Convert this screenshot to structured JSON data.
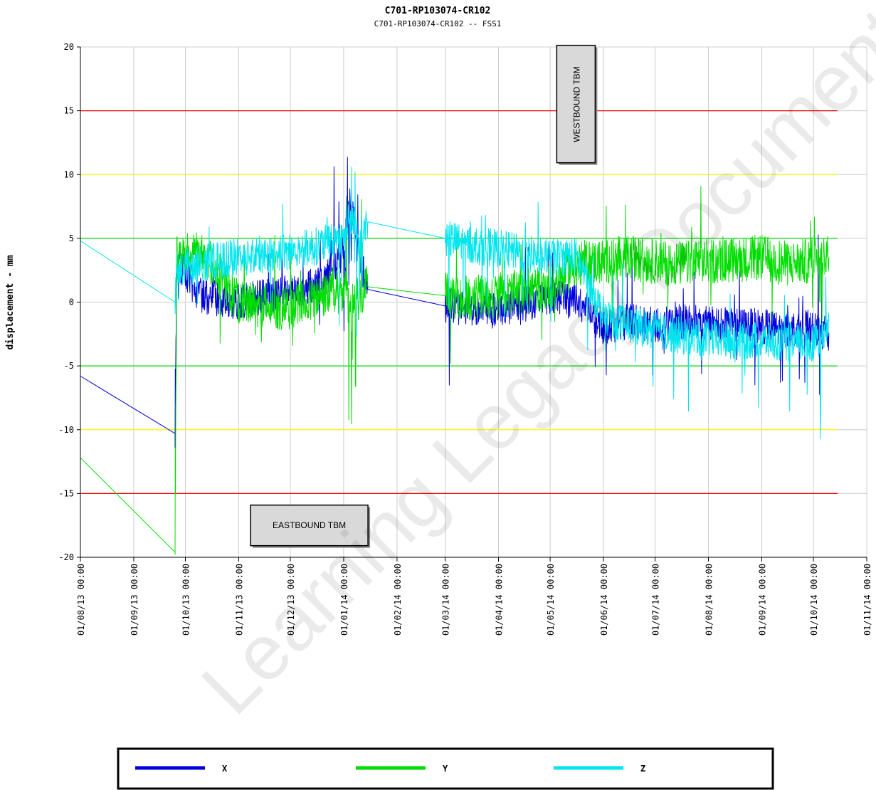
{
  "chart_data": {
    "type": "line",
    "title": "C701-RP103074-CR102",
    "subtitle": "C701-RP103074-CR102 -- FSS1",
    "ylabel": "displacement - mm",
    "xlabel": "",
    "ylim": [
      -20,
      20
    ],
    "yticks": [
      20,
      15,
      10,
      5,
      0,
      -5,
      -10,
      -15,
      -20
    ],
    "xlim": [
      "2013-08-01",
      "2014-11-01"
    ],
    "xticks": [
      {
        "date": "2013-08-01",
        "label": "01/08/13 00:00"
      },
      {
        "date": "2013-09-01",
        "label": "01/09/13 00:00"
      },
      {
        "date": "2013-10-01",
        "label": "01/10/13 00:00"
      },
      {
        "date": "2013-11-01",
        "label": "01/11/13 00:00"
      },
      {
        "date": "2013-12-01",
        "label": "01/12/13 00:00"
      },
      {
        "date": "2014-01-01",
        "label": "01/01/14 00:00"
      },
      {
        "date": "2014-02-01",
        "label": "01/02/14 00:00"
      },
      {
        "date": "2014-03-01",
        "label": "01/03/14 00:00"
      },
      {
        "date": "2014-04-01",
        "label": "01/04/14 00:00"
      },
      {
        "date": "2014-05-01",
        "label": "01/05/14 00:00"
      },
      {
        "date": "2014-06-01",
        "label": "01/06/14 00:00"
      },
      {
        "date": "2014-07-01",
        "label": "01/07/14 00:00"
      },
      {
        "date": "2014-08-01",
        "label": "01/08/14 00:00"
      },
      {
        "date": "2014-09-01",
        "label": "01/09/14 00:00"
      },
      {
        "date": "2014-10-01",
        "label": "01/10/14 00:00"
      },
      {
        "date": "2014-11-01",
        "label": "01/11/14 00:00"
      }
    ],
    "grid": true,
    "thresholds": [
      {
        "y": 15,
        "color": "#ff0000"
      },
      {
        "y": -15,
        "color": "#ff0000"
      },
      {
        "y": 10,
        "color": "#ffff00"
      },
      {
        "y": -10,
        "color": "#ffff00"
      },
      {
        "y": 5,
        "color": "#00dd00"
      },
      {
        "y": -5,
        "color": "#00dd00"
      }
    ],
    "annotations": [
      {
        "text": "WESTBOUND TBM",
        "date": "2014-05-16",
        "y": 15.5,
        "orientation": "vertical"
      },
      {
        "text": "EASTBOUND TBM",
        "date": "2013-12-12",
        "y": -17.5,
        "orientation": "horizontal"
      }
    ],
    "legend_position": "bottom",
    "series": [
      {
        "name": "X",
        "color": "#0000dd",
        "x": [
          "2013-08-01",
          "2013-09-25",
          "2013-09-26",
          "2013-10-10",
          "2013-11-01",
          "2013-12-01",
          "2013-12-20",
          "2014-01-01",
          "2014-01-05",
          "2014-01-10",
          "2014-01-15",
          "2014-03-01",
          "2014-03-15",
          "2014-04-01",
          "2014-04-15",
          "2014-05-01",
          "2014-05-16",
          "2014-06-01",
          "2014-06-15",
          "2014-07-01",
          "2014-07-15",
          "2014-08-01",
          "2014-08-15",
          "2014-09-01",
          "2014-09-15",
          "2014-09-28",
          "2014-10-05",
          "2014-10-10"
        ],
        "y": [
          -5.8,
          -10.3,
          3.0,
          0.5,
          0.0,
          0.8,
          1.5,
          4.0,
          8.0,
          3.5,
          1.0,
          -0.3,
          -0.5,
          -0.7,
          -0.2,
          0.5,
          0.2,
          -2.0,
          -1.5,
          -1.8,
          -1.5,
          -1.6,
          -1.8,
          -1.9,
          -2.2,
          -2.0,
          -2.5,
          -2.4
        ]
      },
      {
        "name": "Y",
        "color": "#00dd00",
        "x": [
          "2013-08-01",
          "2013-09-25",
          "2013-09-26",
          "2013-10-10",
          "2013-11-01",
          "2013-12-01",
          "2013-12-20",
          "2014-01-01",
          "2014-01-05",
          "2014-01-10",
          "2014-01-15",
          "2014-03-01",
          "2014-03-15",
          "2014-04-01",
          "2014-04-15",
          "2014-05-01",
          "2014-05-16",
          "2014-06-01",
          "2014-06-15",
          "2014-07-01",
          "2014-07-15",
          "2014-08-01",
          "2014-08-15",
          "2014-09-01",
          "2014-09-15",
          "2014-09-28",
          "2014-10-05",
          "2014-10-10"
        ],
        "y": [
          -12.2,
          -19.6,
          3.5,
          4.0,
          0.0,
          -0.5,
          0.5,
          1.0,
          -0.5,
          0.2,
          1.2,
          0.5,
          0.3,
          0.5,
          0.8,
          1.2,
          3.0,
          3.2,
          3.5,
          3.2,
          3.0,
          3.2,
          3.3,
          3.5,
          3.0,
          3.2,
          3.8,
          3.5
        ]
      },
      {
        "name": "Z",
        "color": "#00e5ee",
        "x": [
          "2013-08-01",
          "2013-09-25",
          "2013-09-26",
          "2013-10-10",
          "2013-11-01",
          "2013-12-01",
          "2013-12-20",
          "2014-01-01",
          "2014-01-05",
          "2014-01-10",
          "2014-01-15",
          "2014-03-01",
          "2014-03-15",
          "2014-04-01",
          "2014-04-15",
          "2014-05-01",
          "2014-05-16",
          "2014-06-01",
          "2014-06-15",
          "2014-07-01",
          "2014-07-15",
          "2014-08-01",
          "2014-08-15",
          "2014-09-01",
          "2014-09-15",
          "2014-09-28",
          "2014-10-05",
          "2014-10-10"
        ],
        "y": [
          4.8,
          0.0,
          2.5,
          3.0,
          3.5,
          4.0,
          4.5,
          5.5,
          6.5,
          5.0,
          6.3,
          5.0,
          4.5,
          4.2,
          3.8,
          3.5,
          3.6,
          -1.0,
          -1.8,
          -2.2,
          -2.6,
          -2.8,
          -3.0,
          -3.0,
          -3.2,
          -3.3,
          -2.8,
          -1.5
        ]
      }
    ]
  },
  "watermark": "Learning Legacy Document"
}
